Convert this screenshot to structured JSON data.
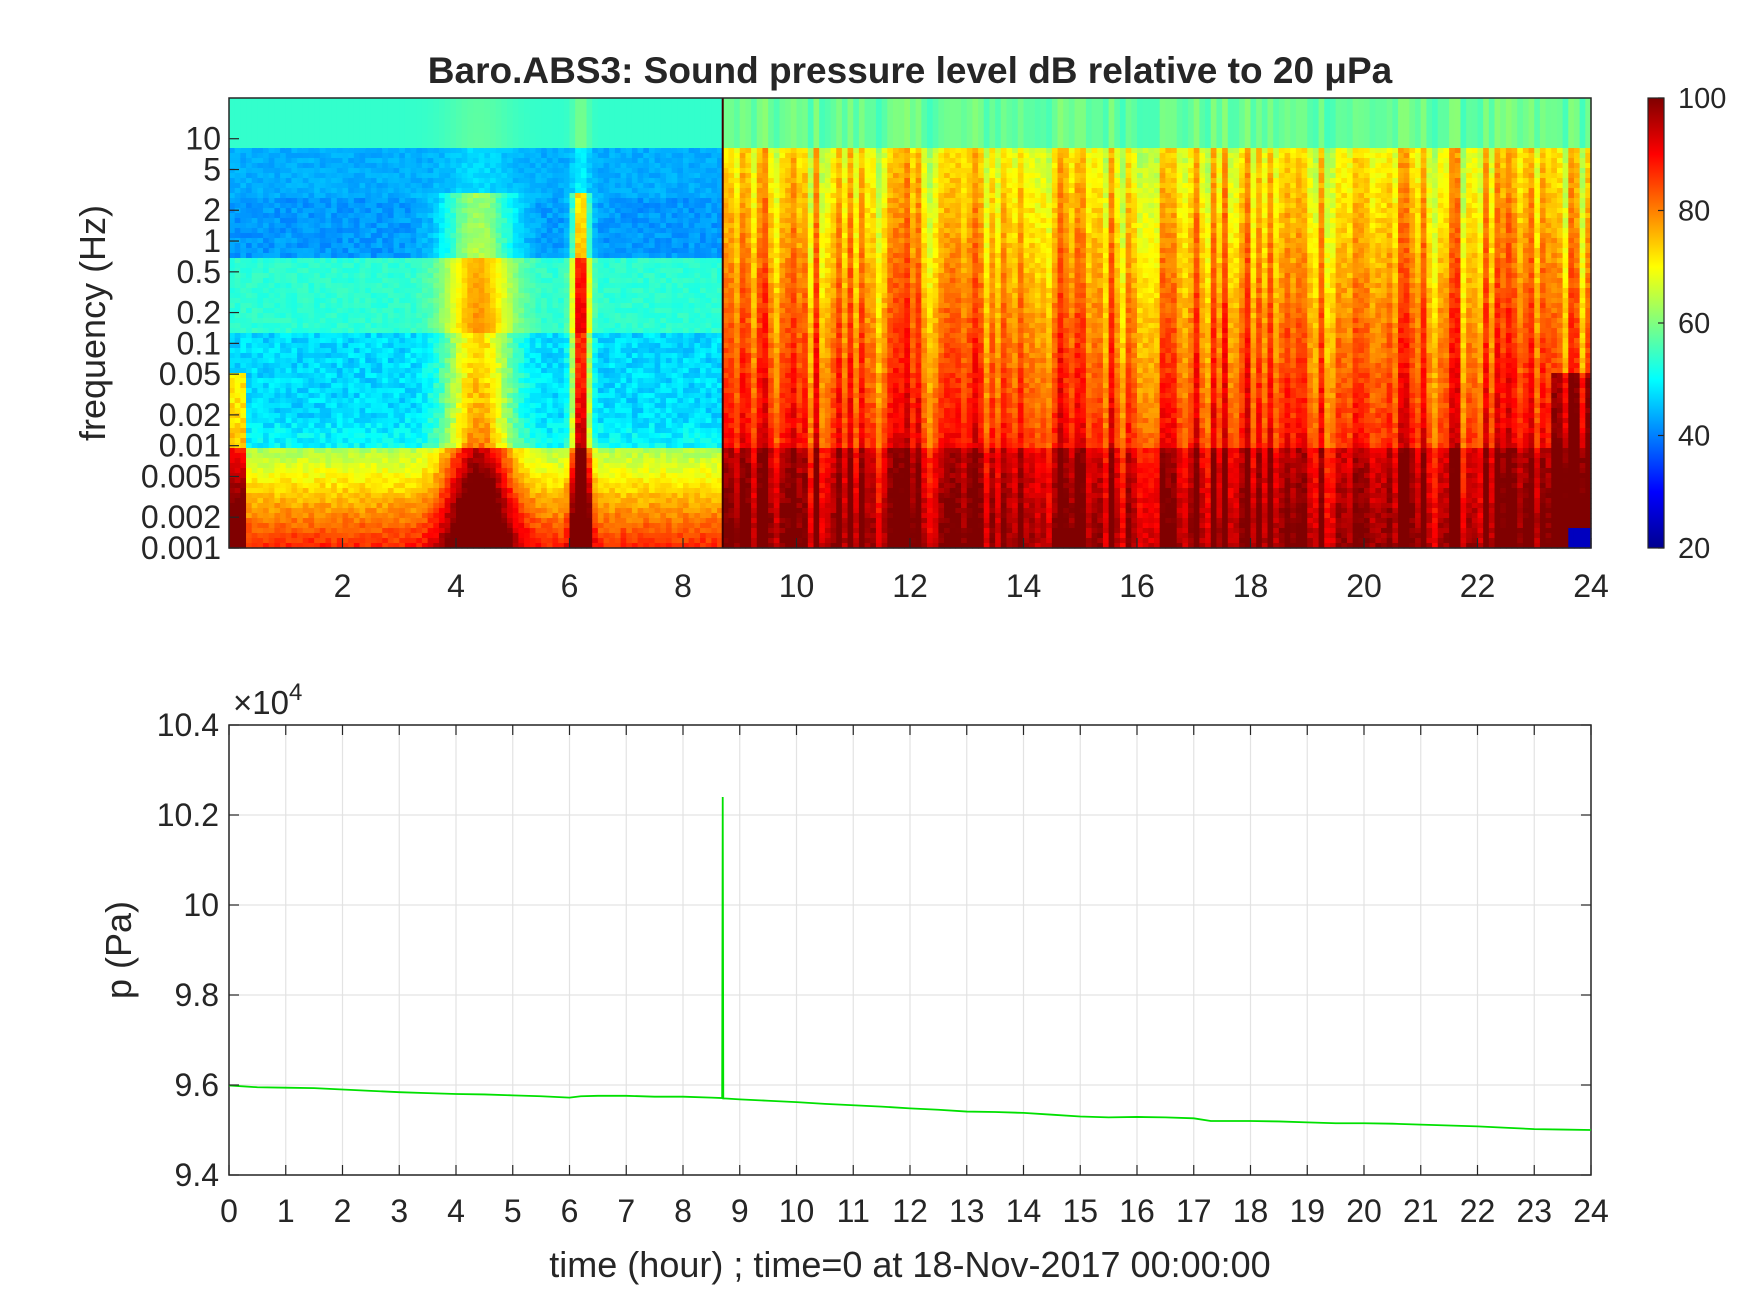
{
  "chart_data": [
    {
      "type": "heatmap",
      "title": "Baro.ABS3: Sound pressure level dB relative to 20 μPa",
      "xlabel": "",
      "ylabel": "frequency (Hz)",
      "xlim": [
        0,
        24
      ],
      "x_ticks": [
        "2",
        "4",
        "6",
        "8",
        "10",
        "12",
        "14",
        "16",
        "18",
        "20",
        "22",
        "24"
      ],
      "y_scale": "log",
      "ylim": [
        0.001,
        25
      ],
      "y_ticks": [
        "0.001",
        "0.002",
        "0.005",
        "0.01",
        "0.02",
        "0.05",
        "0.1",
        "0.2",
        "0.5",
        "1",
        "2",
        "5",
        "10"
      ],
      "colorbar": {
        "colormap": "jet",
        "clim": [
          20,
          100
        ],
        "ticks": [
          "20",
          "40",
          "60",
          "80",
          "100"
        ]
      },
      "events": [
        {
          "time_hour": 8.7
        }
      ],
      "description_values": {
        "quiet_period_hours": [
          0,
          8.7
        ],
        "active_period_hours": [
          8.7,
          24
        ]
      }
    },
    {
      "type": "line",
      "title": "",
      "xlabel": "time (hour) ; time=0 at 18-Nov-2017 00:00:00",
      "ylabel": "p (Pa)",
      "xlim": [
        0,
        24
      ],
      "ylim": [
        94000,
        104000
      ],
      "x_ticks": [
        "0",
        "1",
        "2",
        "3",
        "4",
        "5",
        "6",
        "7",
        "8",
        "9",
        "10",
        "11",
        "12",
        "13",
        "14",
        "15",
        "16",
        "17",
        "18",
        "19",
        "20",
        "21",
        "22",
        "23",
        "24"
      ],
      "y_ticks": [
        "9.4",
        "9.6",
        "9.8",
        "10",
        "10.2",
        "10.4"
      ],
      "y_multiplier": "10",
      "y_multiplier_exp": "4",
      "grid": true,
      "series": [
        {
          "color": "#00e000",
          "x": [
            0,
            0.5,
            1,
            1.5,
            2,
            2.5,
            3,
            3.5,
            4,
            4.5,
            5,
            5.5,
            6,
            6.2,
            6.5,
            7,
            7.5,
            8,
            8.5,
            8.69,
            8.7,
            8.71,
            8.75,
            9,
            9.5,
            10,
            10.5,
            11,
            11.5,
            12,
            12.5,
            13,
            13.5,
            14,
            14.5,
            15,
            15.5,
            16,
            16.5,
            17,
            17.3,
            17.5,
            18,
            18.5,
            19,
            19.5,
            20,
            20.5,
            21,
            21.5,
            22,
            22.5,
            23,
            23.5,
            24
          ],
          "values": [
            95990,
            95950,
            95940,
            95930,
            95900,
            95870,
            95840,
            95820,
            95800,
            95790,
            95770,
            95750,
            95720,
            95750,
            95760,
            95760,
            95740,
            95740,
            95720,
            95710,
            102400,
            95700,
            95700,
            95680,
            95650,
            95620,
            95580,
            95550,
            95520,
            95480,
            95450,
            95410,
            95400,
            95380,
            95340,
            95300,
            95280,
            95290,
            95280,
            95260,
            95200,
            95200,
            95200,
            95190,
            95170,
            95150,
            95150,
            95140,
            95120,
            95100,
            95080,
            95050,
            95020,
            95010,
            95000
          ]
        }
      ]
    }
  ]
}
